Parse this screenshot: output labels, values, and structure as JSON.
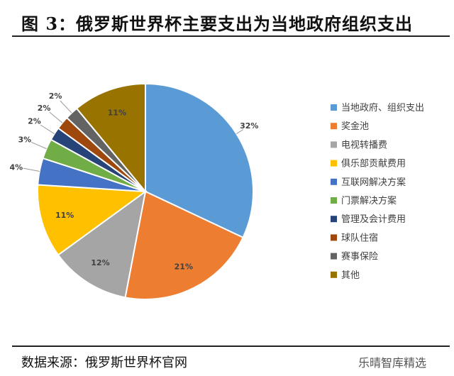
{
  "title": "图 3：俄罗斯世界杯主要支出为当地政府组织支出",
  "source": "数据来源：俄罗斯世界杯官网",
  "watermark": "乐晴智库精选",
  "chart_data": {
    "type": "pie",
    "title": "",
    "legend_position": "right",
    "start": "12 o'clock, clockwise",
    "categories": [
      "当地政府、组织支出",
      "奖金池",
      "电视转播费",
      "俱乐部贡献费用",
      "互联网解决方案",
      "门票解决方案",
      "管理及会计费用",
      "球队住宿",
      "赛事保险",
      "其他"
    ],
    "values": [
      32,
      21,
      12,
      11,
      4,
      3,
      2,
      2,
      2,
      11
    ],
    "labels": [
      "32%",
      "21%",
      "12%",
      "11%",
      "4%",
      "3%",
      "2%",
      "2%",
      "2%",
      "11%"
    ],
    "colors": [
      "#5B9BD5",
      "#ED7D31",
      "#A5A5A5",
      "#FFC000",
      "#4472C4",
      "#70AD47",
      "#264478",
      "#9E480E",
      "#636363",
      "#997300"
    ]
  }
}
